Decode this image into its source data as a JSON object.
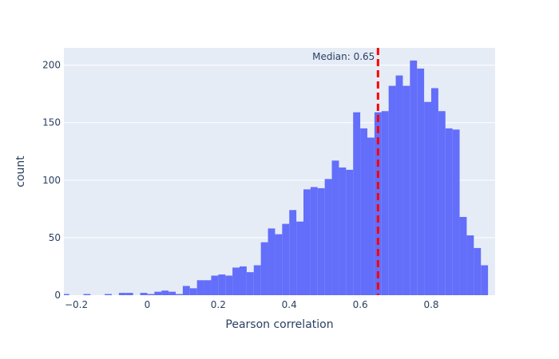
{
  "chart_data": {
    "type": "bar",
    "subtype": "histogram",
    "title": "",
    "xlabel": "Pearson correlation",
    "ylabel": "count",
    "xlim": [
      -0.235,
      0.98
    ],
    "ylim": [
      0,
      215
    ],
    "xticks": [
      -0.2,
      0,
      0.2,
      0.4,
      0.6,
      0.8
    ],
    "xtick_labels": [
      "−0.2",
      "0",
      "0.2",
      "0.4",
      "0.6",
      "0.8"
    ],
    "yticks": [
      0,
      50,
      100,
      150,
      200
    ],
    "yticks_labels": [
      "0",
      "50",
      "100",
      "150",
      "200"
    ],
    "grid": "horizontal",
    "bin_start": -0.24,
    "bin_width": 0.02,
    "values": [
      1,
      0,
      0,
      1,
      0,
      0,
      1,
      0,
      2,
      2,
      0,
      2,
      1,
      3,
      4,
      3,
      1,
      8,
      6,
      13,
      13,
      17,
      18,
      17,
      24,
      25,
      20,
      26,
      46,
      58,
      53,
      62,
      74,
      64,
      92,
      94,
      93,
      101,
      117,
      111,
      109,
      159,
      145,
      137,
      159,
      160,
      182,
      191,
      182,
      204,
      197,
      168,
      180,
      160,
      145,
      144,
      68,
      52,
      41,
      26,
      0,
      3
    ],
    "bar_color": "#636efa",
    "plot_background": "#e5ecf6",
    "annotation": {
      "text": "Median: 0.65",
      "x": 0.65,
      "line_color": "#ff0000",
      "line_style": "dashed"
    }
  }
}
